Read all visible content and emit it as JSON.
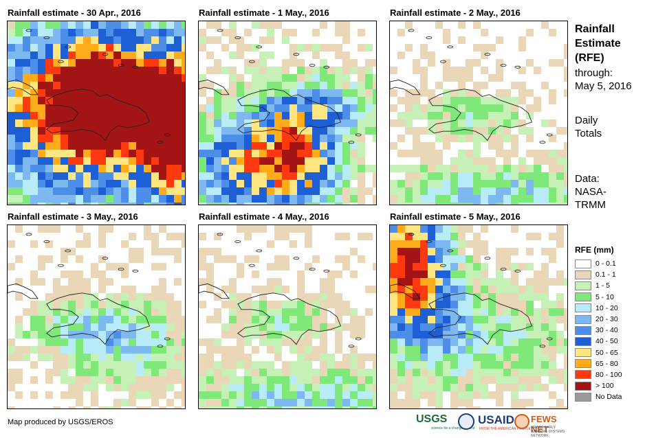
{
  "panels": [
    {
      "title": "Rainfall estimate - 30 Apr., 2016",
      "profile": "heavy"
    },
    {
      "title": "Rainfall estimate - 1 May., 2016",
      "profile": "moderate"
    },
    {
      "title": "Rainfall estimate - 2 May., 2016",
      "profile": "light_south"
    },
    {
      "title": "Rainfall estimate - 3 May., 2016",
      "profile": "light"
    },
    {
      "title": "Rainfall estimate - 4 May., 2016",
      "profile": "light_south"
    },
    {
      "title": "Rainfall estimate - 5 May., 2016",
      "profile": "northwest"
    }
  ],
  "side": {
    "title_line1": "Rainfall",
    "title_line2": "Estimate",
    "title_line3": "(RFE)",
    "through_label": "through:",
    "through_date": "May 5, 2016",
    "totals_line1": "Daily",
    "totals_line2": "Totals",
    "data_label": "Data:",
    "data_source_line1": "NASA-",
    "data_source_line2": "TRMM"
  },
  "legend": {
    "title": "RFE (mm)",
    "items": [
      {
        "label": "0 - 0.1",
        "color": "#ffffff"
      },
      {
        "label": "0.1 - 1",
        "color": "#ead7b7"
      },
      {
        "label": "1 - 5",
        "color": "#c5f0b6"
      },
      {
        "label": "5 - 10",
        "color": "#7ee879"
      },
      {
        "label": "10 - 20",
        "color": "#b8ecf8"
      },
      {
        "label": "20 - 30",
        "color": "#7db8f0"
      },
      {
        "label": "30 - 40",
        "color": "#4d8fe8"
      },
      {
        "label": "40 - 50",
        "color": "#1f5fd6"
      },
      {
        "label": "50 - 65",
        "color": "#ffe680"
      },
      {
        "label": "65 - 80",
        "color": "#ffab1a"
      },
      {
        "label": "80 - 100",
        "color": "#ff3a10"
      },
      {
        "label": "> 100",
        "color": "#a31515"
      },
      {
        "label": "No Data",
        "color": "#9a9a9a"
      }
    ]
  },
  "footer": {
    "credit": "Map produced by USGS/EROS"
  },
  "logos": {
    "usgs": "USGS",
    "usgs_tagline": "science for a changing world",
    "usaid": "USAID",
    "usaid_tagline": "FROM THE AMERICAN PEOPLE",
    "fews": "FEWS NET",
    "fews_tagline": "FAMINE EARLY WARNING SYSTEMS NETWORK"
  }
}
